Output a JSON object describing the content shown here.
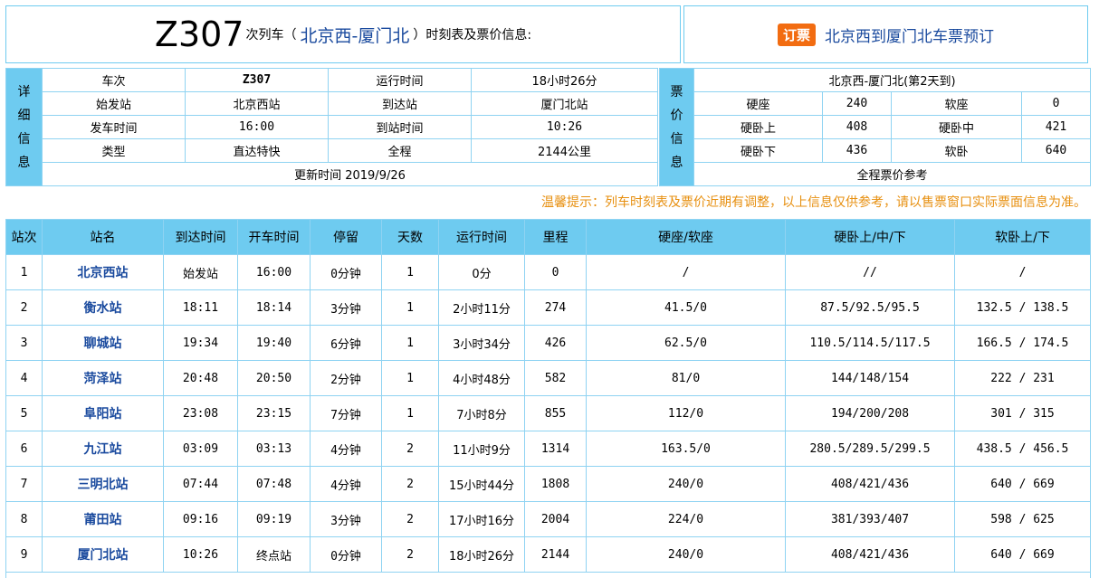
{
  "header": {
    "train_no": "Z307",
    "suffix": "次列车（",
    "route": "北京西-厦门北",
    "tail": "）时刻表及票价信息:",
    "badge": "订票",
    "booking_link": "北京西到厦门北车票预订"
  },
  "details": {
    "side_label": [
      "详",
      "细",
      "信",
      "息"
    ],
    "rows": [
      [
        "车次",
        "Z307",
        "运行时间",
        "18小时26分"
      ],
      [
        "始发站",
        "北京西站",
        "到达站",
        "厦门北站"
      ],
      [
        "发车时间",
        "16:00",
        "到站时间",
        "10:26"
      ],
      [
        "类型",
        "直达特快",
        "全程",
        "2144公里"
      ]
    ],
    "updated": "更新时间 2019/9/26"
  },
  "prices": {
    "side_label": [
      "票",
      "价",
      "信",
      "息"
    ],
    "title": "北京西-厦门北(第2天到)",
    "rows": [
      [
        "硬座",
        "240",
        "软座",
        "0"
      ],
      [
        "硬卧上",
        "408",
        "硬卧中",
        "421"
      ],
      [
        "硬卧下",
        "436",
        "软卧",
        "640"
      ]
    ],
    "footer": "全程票价参考"
  },
  "tip": "温馨提示：列车时刻表及票价近期有调整，以上信息仅供参考，请以售票窗口实际票面信息为准。",
  "schedule": {
    "headers": [
      "站次",
      "站名",
      "到达时间",
      "开车时间",
      "停留",
      "天数",
      "运行时间",
      "里程",
      "硬座/软座",
      "硬卧上/中/下",
      "软卧上/下"
    ],
    "rows": [
      [
        "1",
        "北京西站",
        "始发站",
        "16:00",
        "0分钟",
        "1",
        "0分",
        "0",
        "/",
        "//",
        "/"
      ],
      [
        "2",
        "衡水站",
        "18:11",
        "18:14",
        "3分钟",
        "1",
        "2小时11分",
        "274",
        "41.5/0",
        "87.5/92.5/95.5",
        "132.5 / 138.5"
      ],
      [
        "3",
        "聊城站",
        "19:34",
        "19:40",
        "6分钟",
        "1",
        "3小时34分",
        "426",
        "62.5/0",
        "110.5/114.5/117.5",
        "166.5 / 174.5"
      ],
      [
        "4",
        "菏泽站",
        "20:48",
        "20:50",
        "2分钟",
        "1",
        "4小时48分",
        "582",
        "81/0",
        "144/148/154",
        "222 / 231"
      ],
      [
        "5",
        "阜阳站",
        "23:08",
        "23:15",
        "7分钟",
        "1",
        "7小时8分",
        "855",
        "112/0",
        "194/200/208",
        "301 / 315"
      ],
      [
        "6",
        "九江站",
        "03:09",
        "03:13",
        "4分钟",
        "2",
        "11小时9分",
        "1314",
        "163.5/0",
        "280.5/289.5/299.5",
        "438.5 / 456.5"
      ],
      [
        "7",
        "三明北站",
        "07:44",
        "07:48",
        "4分钟",
        "2",
        "15小时44分",
        "1808",
        "240/0",
        "408/421/436",
        "640 / 669"
      ],
      [
        "8",
        "莆田站",
        "09:16",
        "09:19",
        "3分钟",
        "2",
        "17小时16分",
        "2004",
        "224/0",
        "381/393/407",
        "598 / 625"
      ],
      [
        "9",
        "厦门北站",
        "10:26",
        "终点站",
        "0分钟",
        "2",
        "18小时26分",
        "2144",
        "240/0",
        "408/421/436",
        "640 / 669"
      ]
    ]
  },
  "colors": {
    "accent": "#6ecbf0",
    "link": "#1a4a9e",
    "tip": "#e78f0f",
    "badge": "#f26c11"
  }
}
